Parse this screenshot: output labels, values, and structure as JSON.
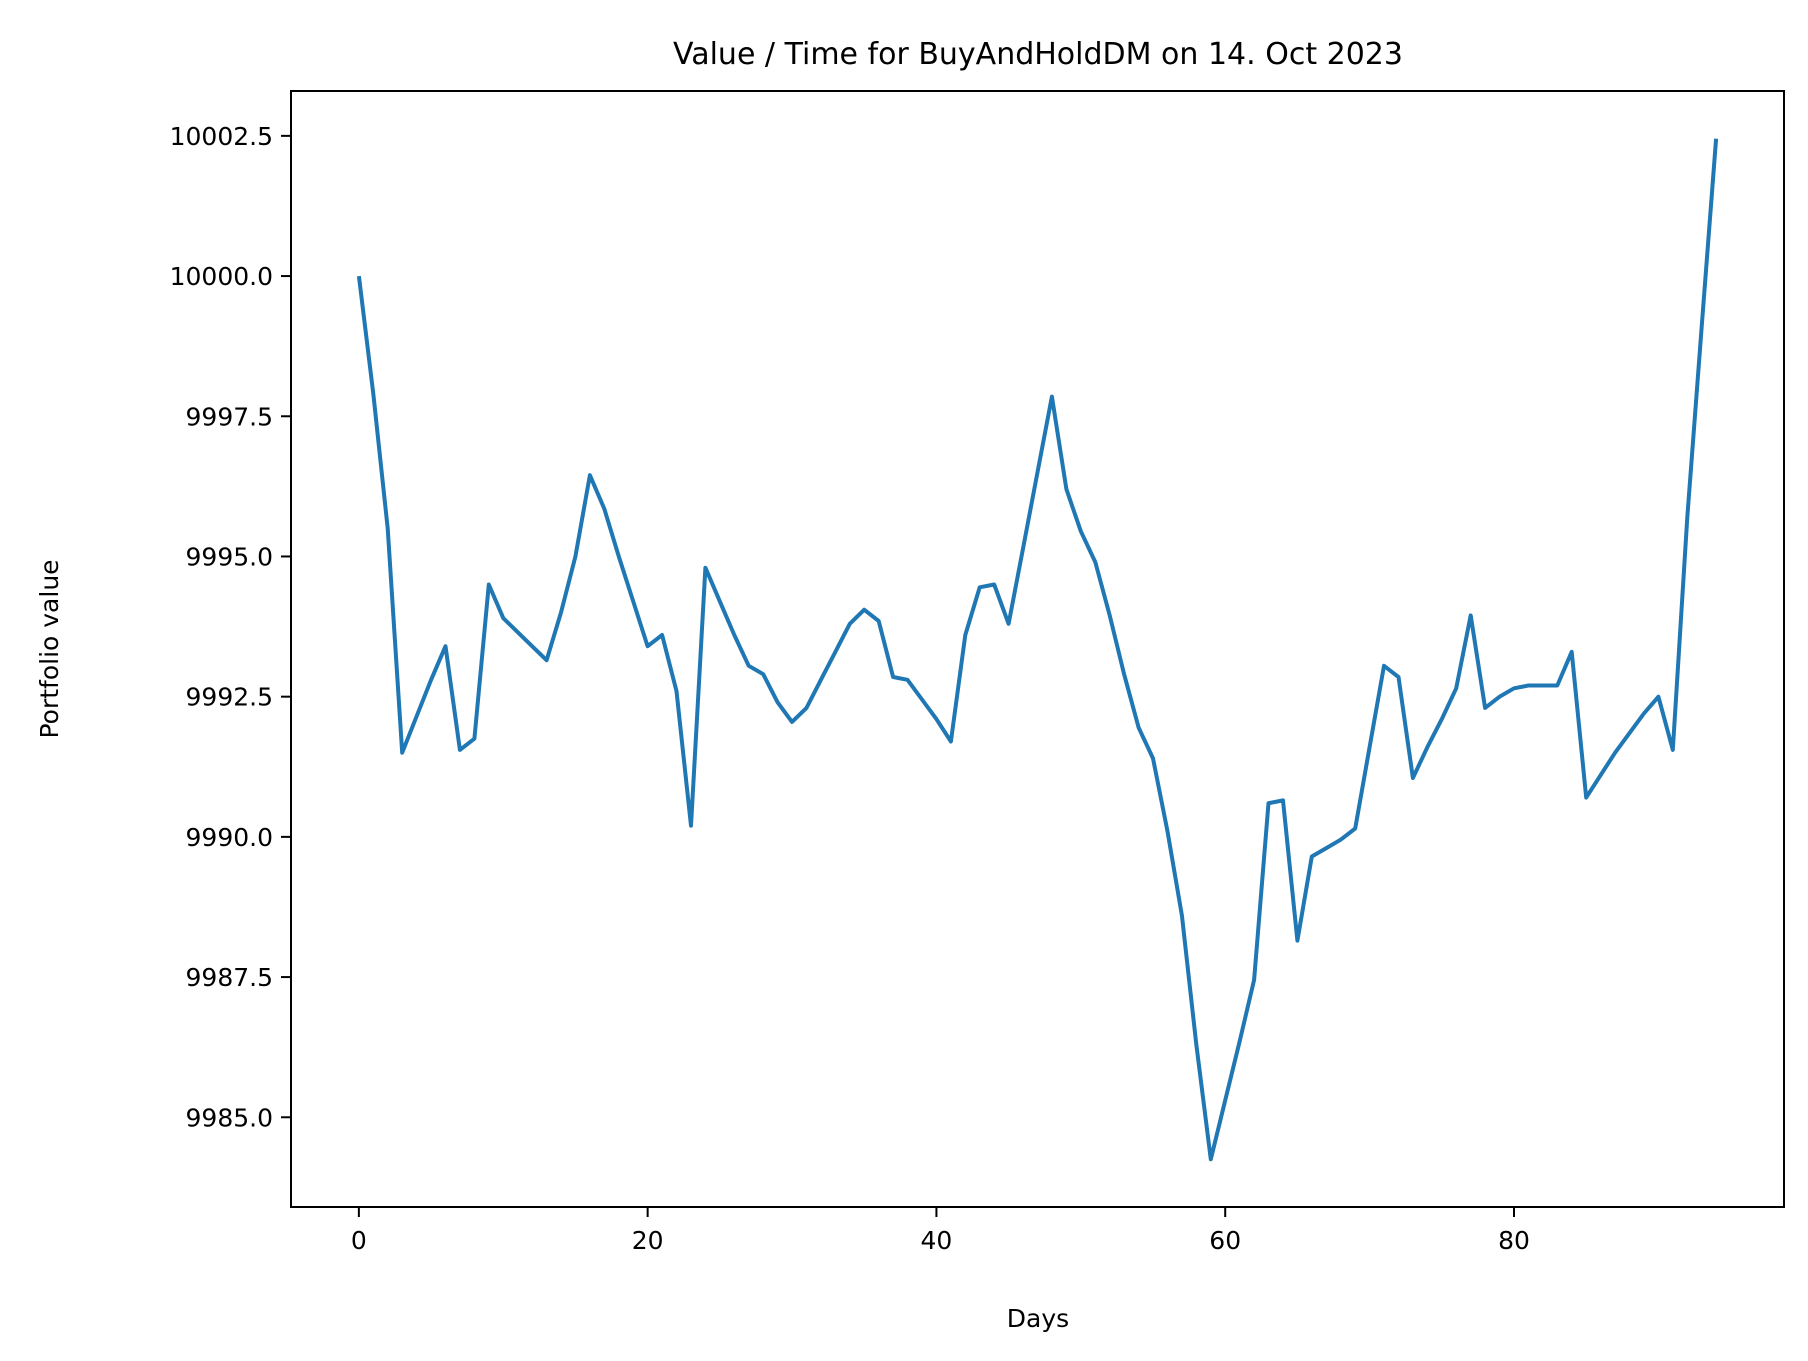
{
  "chart_data": {
    "type": "line",
    "title": "Value / Time for BuyAndHoldDM on 14. Oct 2023",
    "xlabel": "Days",
    "ylabel": "Portfolio value",
    "xlim": [
      -4.7,
      98.7
    ],
    "ylim": [
      9983.4,
      10003.3
    ],
    "xticks": [
      0,
      20,
      40,
      60,
      80
    ],
    "yticks": [
      9985.0,
      9987.5,
      9990.0,
      9992.5,
      9995.0,
      9997.5,
      10000.0,
      10002.5
    ],
    "ytick_decimals": 1,
    "grid": false,
    "legend": "none",
    "series": [
      {
        "color": "#1f77b4",
        "x": [
          0,
          1,
          2,
          3,
          4,
          5,
          6,
          7,
          8,
          9,
          10,
          11,
          12,
          13,
          14,
          15,
          16,
          17,
          18,
          19,
          20,
          21,
          22,
          23,
          24,
          25,
          26,
          27,
          28,
          29,
          30,
          31,
          32,
          33,
          34,
          35,
          36,
          37,
          38,
          39,
          40,
          41,
          42,
          43,
          44,
          45,
          46,
          47,
          48,
          49,
          50,
          51,
          52,
          53,
          54,
          55,
          56,
          57,
          58,
          59,
          60,
          61,
          62,
          63,
          64,
          65,
          66,
          67,
          68,
          69,
          70,
          71,
          72,
          73,
          74,
          75,
          76,
          77,
          78,
          79,
          80,
          81,
          82,
          83,
          84,
          85,
          86,
          87,
          88,
          89,
          90,
          91,
          92,
          93,
          94
        ],
        "y": [
          10000.0,
          9997.9,
          9995.5,
          9991.5,
          9992.15,
          9992.8,
          9993.4,
          9991.55,
          9991.75,
          9994.5,
          9993.9,
          9993.65,
          9993.4,
          9993.15,
          9994.0,
          9995.0,
          9996.45,
          9995.85,
          9995.0,
          9994.2,
          9993.4,
          9993.6,
          9992.6,
          9990.2,
          9994.8,
          9994.2,
          9993.6,
          9993.05,
          9992.9,
          9992.4,
          9992.05,
          9992.3,
          9992.8,
          9993.3,
          9993.8,
          9994.05,
          9993.85,
          9992.85,
          9992.8,
          9992.45,
          9992.1,
          9991.7,
          9993.6,
          9994.45,
          9994.5,
          9993.8,
          9995.15,
          9996.5,
          9997.85,
          9996.2,
          9995.45,
          9994.9,
          9993.95,
          9992.9,
          9991.95,
          9991.4,
          9990.1,
          9988.6,
          9986.3,
          9984.25,
          9985.3,
          9986.35,
          9987.45,
          9990.6,
          9990.65,
          9988.15,
          9989.65,
          9989.8,
          9989.95,
          9990.15,
          9991.6,
          9993.05,
          9992.85,
          9991.05,
          9991.6,
          9992.1,
          9992.65,
          9993.95,
          9992.3,
          9992.5,
          9992.65,
          9992.7,
          9992.7,
          9992.7,
          9993.3,
          9990.7,
          9991.1,
          9991.5,
          9991.85,
          9992.2,
          9992.5,
          9991.55,
          9995.7,
          9999.1,
          10002.45
        ]
      }
    ]
  }
}
